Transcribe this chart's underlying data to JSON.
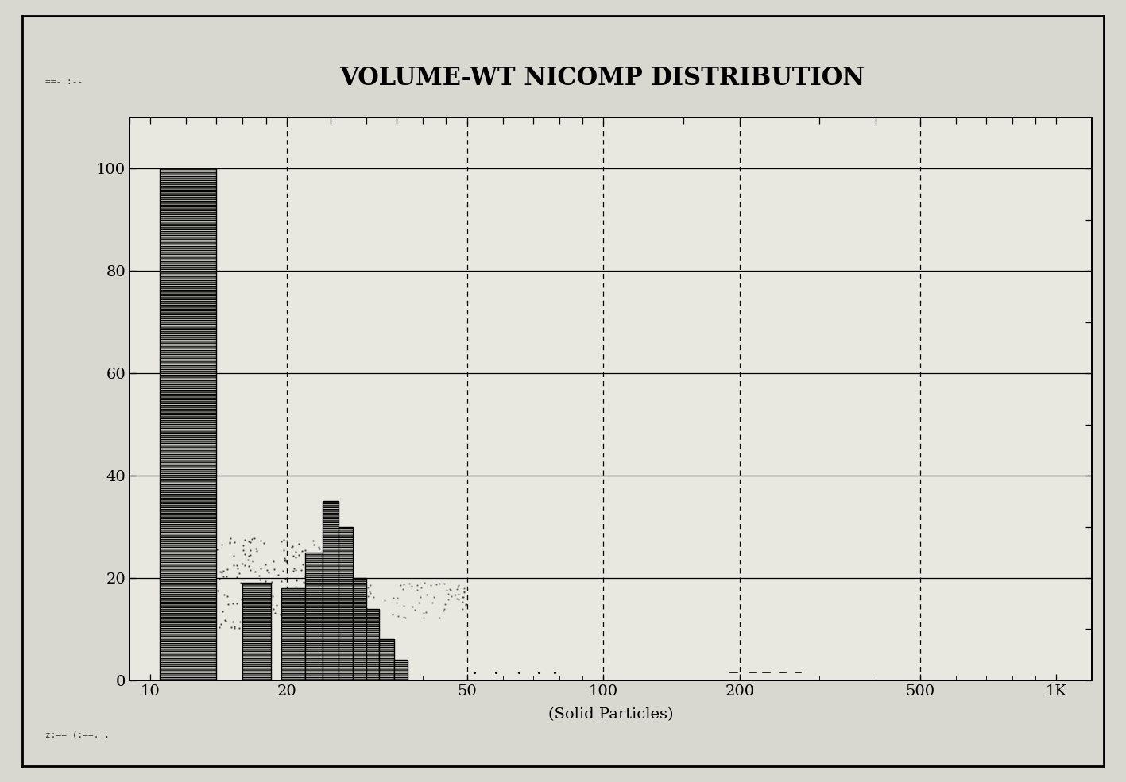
{
  "title": "VOLUME-WT NICOMP DISTRIBUTION",
  "xlabel": "(Solid Particles)",
  "background_color": "#d8d8d0",
  "plot_bg_color": "#e8e8e0",
  "title_fontsize": 22,
  "xlabel_fontsize": 14,
  "top_label_left": "==- :--",
  "bottom_label": "z:== (:==. .",
  "ylim": [
    0,
    110
  ],
  "yticks": [
    0,
    20,
    40,
    60,
    80,
    100
  ],
  "ytick_labels": [
    "0",
    "20",
    "40",
    "60",
    "80",
    "100"
  ],
  "xlog_ticks": [
    10,
    20,
    50,
    100,
    200,
    500,
    1000
  ],
  "xlog_tick_labels": [
    "10",
    "20",
    "50",
    "100",
    "200",
    "500",
    "1K"
  ],
  "bars": [
    {
      "x_left": 10.5,
      "x_right": 14.0,
      "height": 100
    },
    {
      "x_left": 16.0,
      "x_right": 18.5,
      "height": 19
    },
    {
      "x_left": 19.5,
      "x_right": 22.0,
      "height": 18
    },
    {
      "x_left": 22.0,
      "x_right": 24.0,
      "height": 25
    },
    {
      "x_left": 24.0,
      "x_right": 26.0,
      "height": 35
    },
    {
      "x_left": 26.0,
      "x_right": 28.0,
      "height": 30
    },
    {
      "x_left": 28.0,
      "x_right": 30.0,
      "height": 20
    },
    {
      "x_left": 30.0,
      "x_right": 32.0,
      "height": 14
    },
    {
      "x_left": 32.0,
      "x_right": 34.5,
      "height": 8
    },
    {
      "x_left": 34.5,
      "x_right": 37.0,
      "height": 4
    }
  ],
  "bar_facecolor": "#c8c8c0",
  "bar_edgecolor": "#000000",
  "dashed_vlines": [
    20,
    50,
    100,
    200,
    500
  ],
  "hlines": [
    20,
    40,
    60,
    80,
    100
  ],
  "outer_border_color": "#000000",
  "grid_linewidth": 0.9,
  "top_tick_positions": [
    10,
    12,
    14,
    16,
    18,
    20,
    25,
    30,
    35,
    40,
    45,
    50,
    60,
    70,
    80,
    90,
    100,
    150,
    200,
    300,
    400,
    500,
    600,
    700,
    800,
    900,
    1000
  ],
  "right_tick_positions": [
    0,
    10,
    20,
    30,
    40,
    50,
    60,
    70,
    80,
    90,
    100
  ]
}
